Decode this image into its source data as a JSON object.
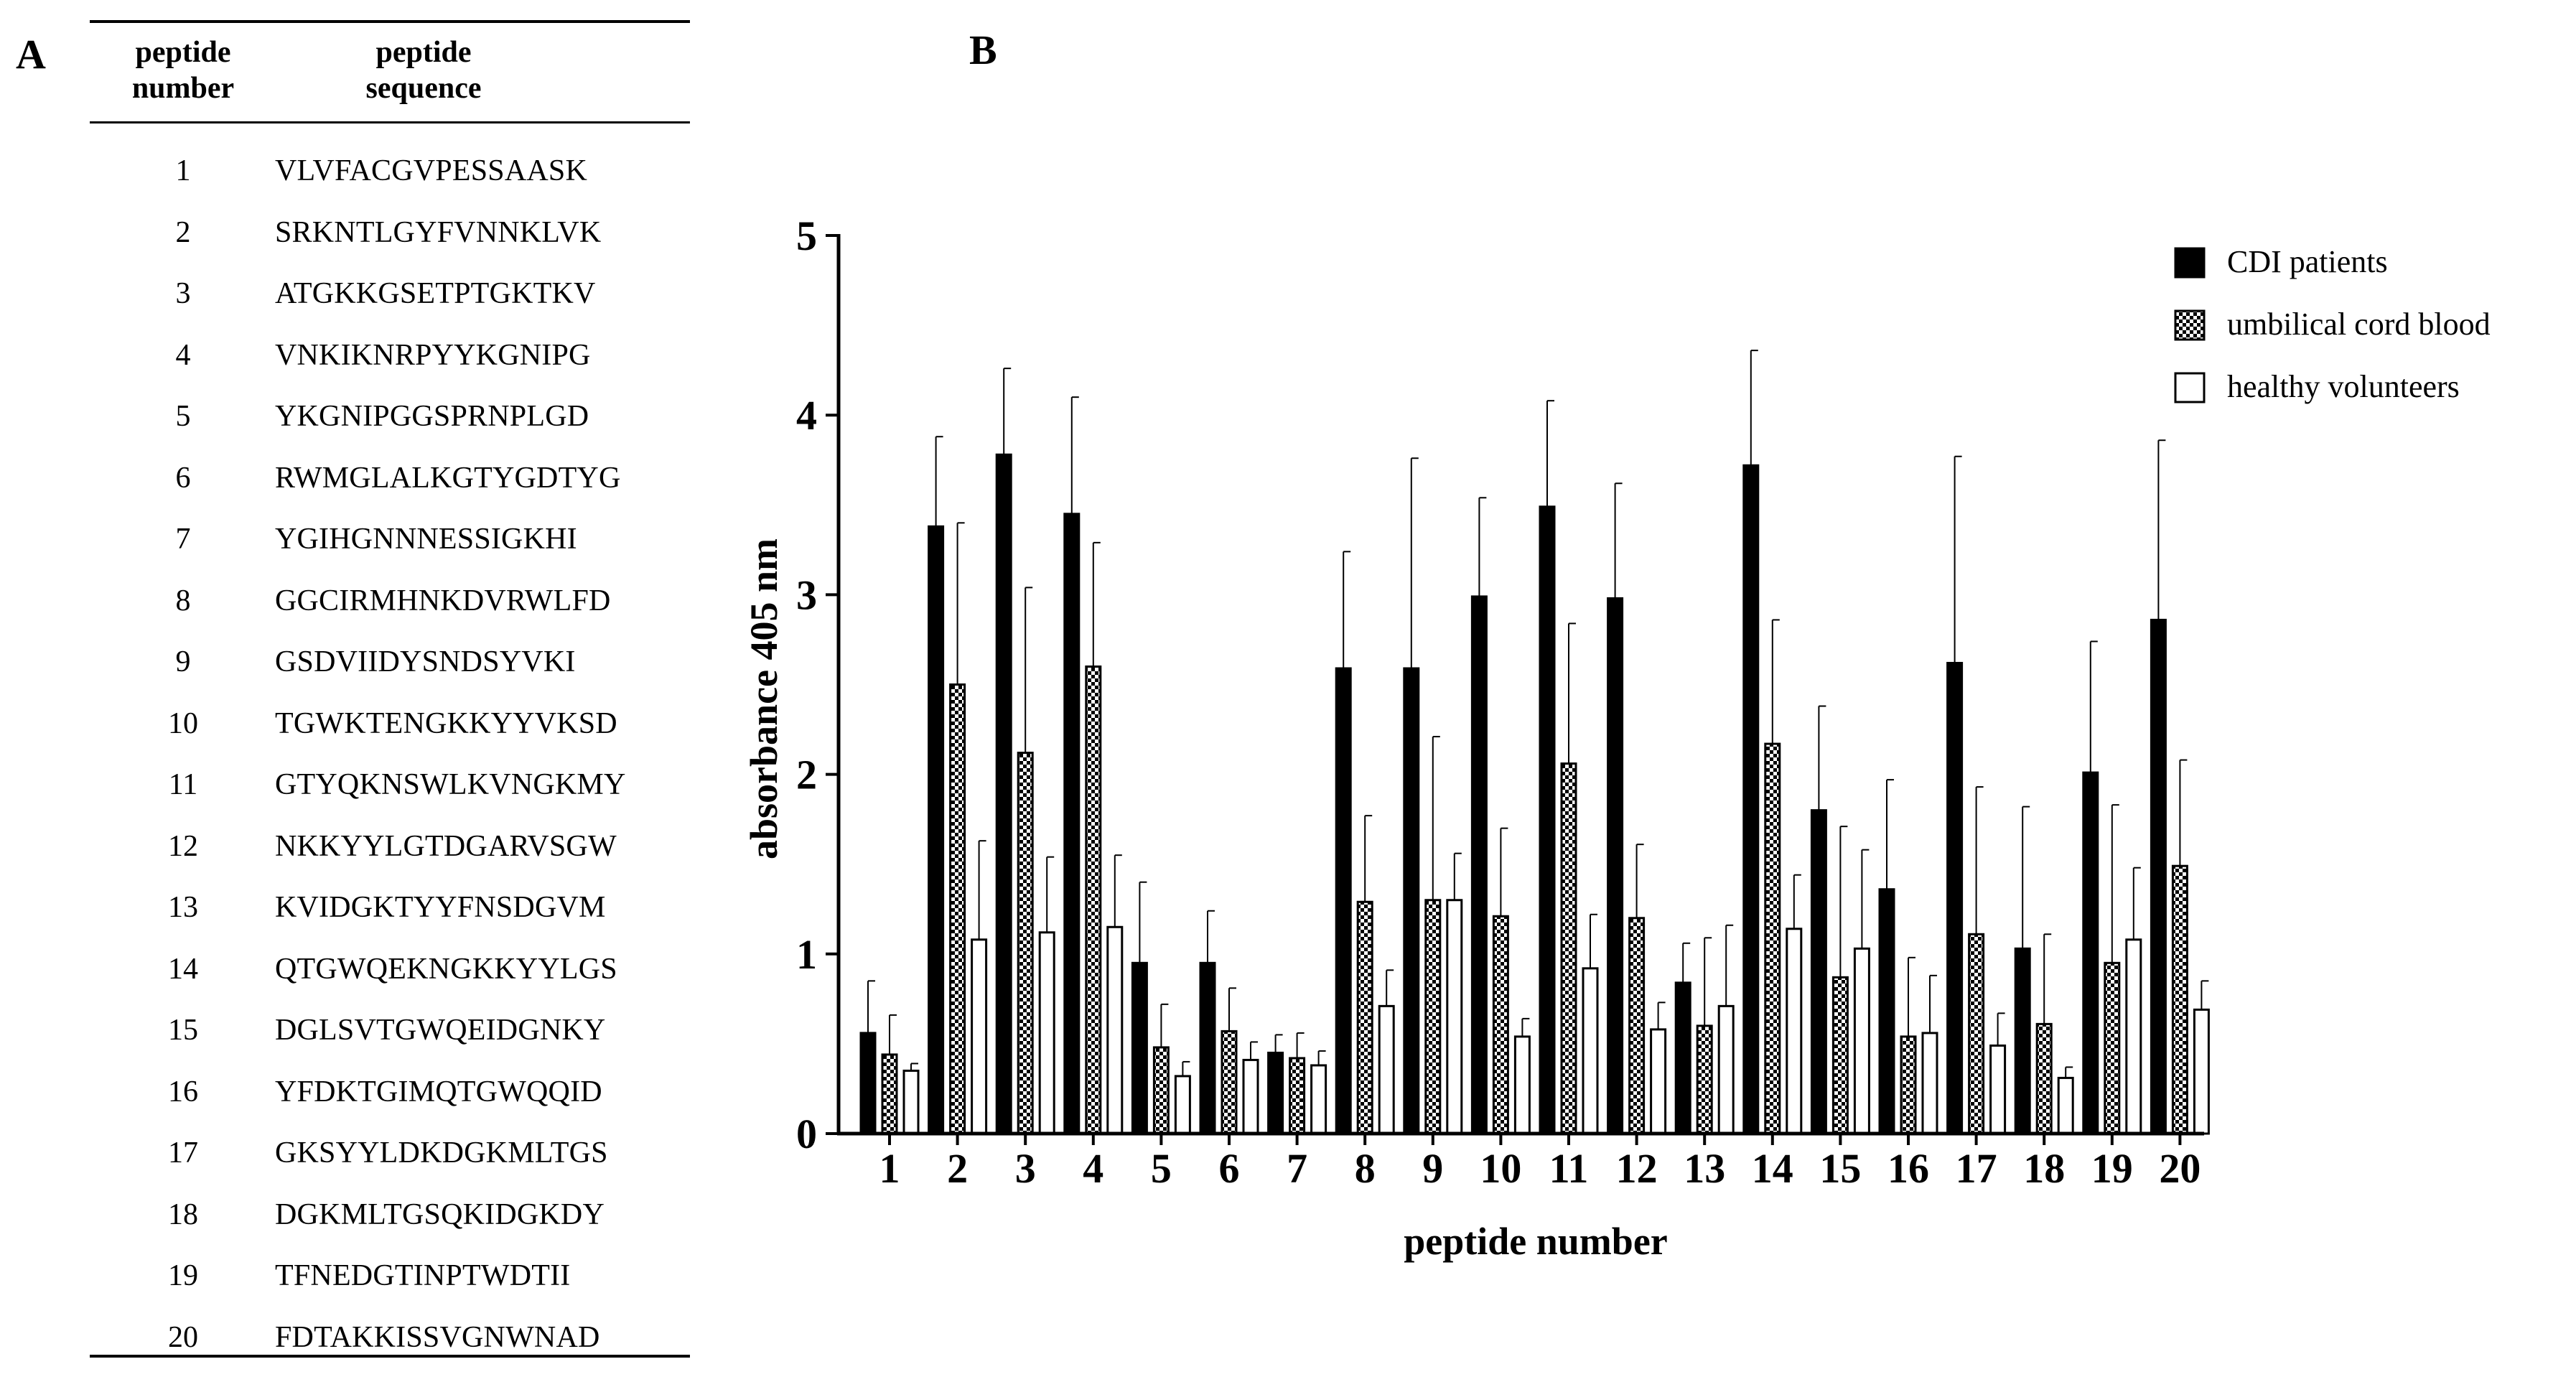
{
  "panels": {
    "a": "A",
    "b": "B"
  },
  "table": {
    "header_number_line1": "peptide",
    "header_number_line2": "number",
    "header_sequence_line1": "peptide",
    "header_sequence_line2": "sequence",
    "rows": [
      {
        "number": "1",
        "sequence": "VLVFACGVPESSAASK"
      },
      {
        "number": "2",
        "sequence": "SRKNTLGYFVNNKLVK"
      },
      {
        "number": "3",
        "sequence": "ATGKKGSETPTGKTKV"
      },
      {
        "number": "4",
        "sequence": "VNKIKNRPYYKGNIPG"
      },
      {
        "number": "5",
        "sequence": "YKGNIPGGSPRNPLGD"
      },
      {
        "number": "6",
        "sequence": "RWMGLALKGTYGDTYG"
      },
      {
        "number": "7",
        "sequence": "YGIHGNNNESSIGKHI"
      },
      {
        "number": "8",
        "sequence": "GGCIRMHNKDVRWLFD"
      },
      {
        "number": "9",
        "sequence": "GSDVIIDYSNDSYVKI"
      },
      {
        "number": "10",
        "sequence": "TGWKTENGKKYYVKSD"
      },
      {
        "number": "11",
        "sequence": "GTYQKNSWLKVNGKMY"
      },
      {
        "number": "12",
        "sequence": "NKKYYLGTDGARVSGW"
      },
      {
        "number": "13",
        "sequence": "KVIDGKTYYFNSDGVM"
      },
      {
        "number": "14",
        "sequence": "QTGWQEKNGKKYYLGS"
      },
      {
        "number": "15",
        "sequence": "DGLSVTGWQEIDGNKY"
      },
      {
        "number": "16",
        "sequence": "YFDKTGIMQTGWQQID"
      },
      {
        "number": "17",
        "sequence": "GKSYYLDKDGKMLTGS"
      },
      {
        "number": "18",
        "sequence": "DGKMLTGSQKIDGKDY"
      },
      {
        "number": "19",
        "sequence": "TFNEDGTINPTWDTII"
      },
      {
        "number": "20",
        "sequence": "FDTAKKISSVGNWNAD"
      }
    ]
  },
  "chart_data": {
    "type": "bar",
    "title": "",
    "xlabel": "peptide number",
    "ylabel": "absorbance 405 nm",
    "ylim": [
      0,
      5
    ],
    "yticks": [
      "0",
      "1",
      "2",
      "3",
      "4",
      "5"
    ],
    "categories": [
      "1",
      "2",
      "3",
      "4",
      "5",
      "6",
      "7",
      "8",
      "9",
      "10",
      "11",
      "12",
      "13",
      "14",
      "15",
      "16",
      "17",
      "18",
      "19",
      "20"
    ],
    "legend_position": "top-right",
    "series": [
      {
        "name": "CDI patients",
        "fill": "solid",
        "color": "#000000",
        "values": [
          0.56,
          3.38,
          3.78,
          3.45,
          0.95,
          0.95,
          0.45,
          2.59,
          2.59,
          2.99,
          3.49,
          2.98,
          0.84,
          3.72,
          1.8,
          1.36,
          2.62,
          1.03,
          2.01,
          2.86
        ],
        "errors": [
          0.29,
          0.5,
          0.48,
          0.65,
          0.45,
          0.29,
          0.1,
          0.65,
          1.17,
          0.55,
          0.59,
          0.64,
          0.22,
          0.64,
          0.58,
          0.61,
          1.15,
          0.79,
          0.73,
          1.0
        ]
      },
      {
        "name": "umbilical cord blood",
        "fill": "checker",
        "color": "#000000",
        "values": [
          0.44,
          2.5,
          2.12,
          2.6,
          0.48,
          0.57,
          0.42,
          1.29,
          1.3,
          1.21,
          2.06,
          1.2,
          0.6,
          2.17,
          0.87,
          0.54,
          1.11,
          0.61,
          0.95,
          1.49
        ],
        "errors": [
          0.22,
          0.9,
          0.92,
          0.69,
          0.24,
          0.24,
          0.14,
          0.48,
          0.91,
          0.49,
          0.78,
          0.41,
          0.49,
          0.69,
          0.84,
          0.44,
          0.82,
          0.5,
          0.88,
          0.59
        ]
      },
      {
        "name": "healthy volunteers",
        "fill": "empty",
        "color": "#000000",
        "values": [
          0.35,
          1.08,
          1.12,
          1.15,
          0.32,
          0.41,
          0.38,
          0.71,
          1.3,
          0.54,
          0.92,
          0.58,
          0.71,
          1.14,
          1.03,
          0.56,
          0.49,
          0.31,
          1.08,
          0.69
        ],
        "errors": [
          0.04,
          0.55,
          0.42,
          0.4,
          0.08,
          0.1,
          0.08,
          0.2,
          0.26,
          0.1,
          0.3,
          0.15,
          0.45,
          0.3,
          0.55,
          0.32,
          0.18,
          0.06,
          0.4,
          0.16
        ]
      }
    ]
  }
}
